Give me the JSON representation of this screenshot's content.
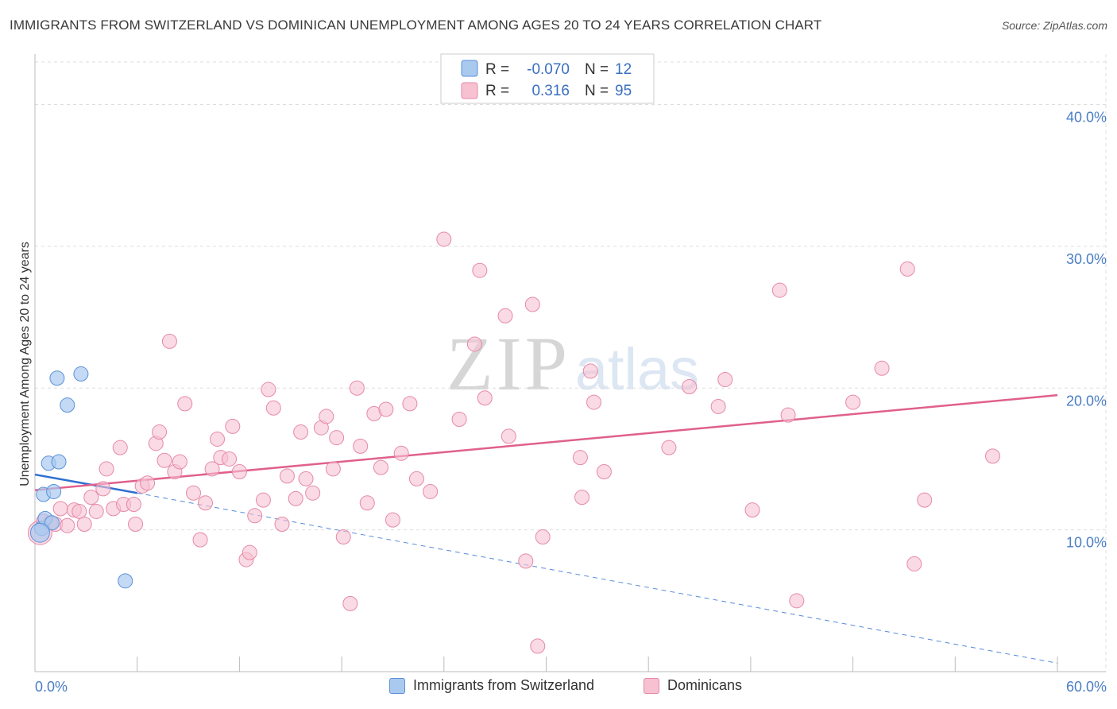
{
  "title": "IMMIGRANTS FROM SWITZERLAND VS DOMINICAN UNEMPLOYMENT AMONG AGES 20 TO 24 YEARS CORRELATION CHART",
  "source": "Source: ZipAtlas.com",
  "watermark": {
    "zip": "ZIP",
    "atlas": "atlas"
  },
  "colors": {
    "blue_fill": "#a9c9ef",
    "blue_stroke": "#5b91d8",
    "blue_line": "#2e6fd0",
    "pink_fill": "#f7c1d2",
    "pink_stroke": "#e58aa8",
    "pink_line": "#e0608c",
    "axis_text": "#4a7ec4",
    "grid": "#dddddd"
  },
  "legend": {
    "rows": [
      {
        "r_label": "R =",
        "r_value": "-0.070",
        "n_label": "N =",
        "n_value": "12",
        "series": "blue"
      },
      {
        "r_label": "R =",
        "r_value": "0.316",
        "n_label": "N =",
        "n_value": "95",
        "series": "pink"
      }
    ]
  },
  "bottom_legend": [
    {
      "label": "Immigrants from Switzerland",
      "series": "blue"
    },
    {
      "label": "Dominicans",
      "series": "pink"
    }
  ],
  "chart_data": {
    "type": "scatter",
    "title": "IMMIGRANTS FROM SWITZERLAND VS DOMINICAN UNEMPLOYMENT AMONG AGES 20 TO 24 YEARS CORRELATION CHART",
    "xlabel": "",
    "ylabel": "Unemployment Among Ages 20 to 24 years",
    "xlim": [
      0,
      60
    ],
    "ylim": [
      0,
      43
    ],
    "x_tick_labels": [
      {
        "value": 0,
        "label": "0.0%"
      },
      {
        "value": 60,
        "label": "60.0%"
      }
    ],
    "x_minor_ticks": [
      0,
      6,
      12,
      18,
      24,
      30,
      36,
      42,
      48,
      54,
      60
    ],
    "y_ticks": [
      {
        "value": 10,
        "label": "10.0%"
      },
      {
        "value": 20,
        "label": "20.0%"
      },
      {
        "value": 30,
        "label": "30.0%"
      },
      {
        "value": 40,
        "label": "40.0%"
      }
    ],
    "grid": true,
    "series": [
      {
        "name": "Immigrants from Switzerland",
        "color": "blue",
        "trend": {
          "x0": 0,
          "y0": 13.9,
          "x1": 6.0,
          "y1": 12.6,
          "extend_to_x": 60,
          "extend_to_y": 0.6
        },
        "points": [
          [
            0.4,
            10.1
          ],
          [
            0.5,
            12.5
          ],
          [
            0.6,
            10.8
          ],
          [
            0.8,
            14.7
          ],
          [
            1.0,
            10.5
          ],
          [
            1.1,
            12.7
          ],
          [
            1.3,
            20.7
          ],
          [
            1.4,
            14.8
          ],
          [
            1.9,
            18.8
          ],
          [
            2.7,
            21.0
          ],
          [
            5.3,
            6.4
          ],
          [
            0.3,
            9.8
          ]
        ]
      },
      {
        "name": "Dominicans",
        "color": "pink",
        "trend": {
          "x0": 0,
          "y0": 12.8,
          "x1": 60,
          "y1": 19.5
        },
        "points": [
          [
            0.3,
            9.8
          ],
          [
            0.5,
            10.6
          ],
          [
            0.9,
            10.5
          ],
          [
            1.2,
            10.4
          ],
          [
            1.5,
            11.5
          ],
          [
            1.9,
            10.3
          ],
          [
            2.3,
            11.4
          ],
          [
            2.6,
            11.3
          ],
          [
            2.9,
            10.4
          ],
          [
            3.3,
            12.3
          ],
          [
            3.6,
            11.3
          ],
          [
            4.0,
            12.9
          ],
          [
            4.2,
            14.3
          ],
          [
            4.6,
            11.5
          ],
          [
            5.0,
            15.8
          ],
          [
            5.2,
            11.8
          ],
          [
            5.8,
            11.8
          ],
          [
            5.9,
            10.4
          ],
          [
            6.3,
            13.1
          ],
          [
            6.6,
            13.3
          ],
          [
            7.1,
            16.1
          ],
          [
            7.3,
            16.9
          ],
          [
            7.6,
            14.9
          ],
          [
            7.9,
            23.3
          ],
          [
            8.2,
            14.1
          ],
          [
            8.5,
            14.8
          ],
          [
            8.8,
            18.9
          ],
          [
            9.3,
            12.6
          ],
          [
            9.7,
            9.3
          ],
          [
            10.0,
            11.9
          ],
          [
            10.4,
            14.3
          ],
          [
            10.7,
            16.4
          ],
          [
            10.9,
            15.1
          ],
          [
            11.4,
            15.0
          ],
          [
            11.6,
            17.3
          ],
          [
            12.0,
            14.1
          ],
          [
            12.4,
            7.9
          ],
          [
            12.6,
            8.4
          ],
          [
            12.9,
            11.0
          ],
          [
            13.4,
            12.1
          ],
          [
            13.7,
            19.9
          ],
          [
            14.0,
            18.6
          ],
          [
            14.5,
            10.4
          ],
          [
            14.8,
            13.8
          ],
          [
            15.3,
            12.2
          ],
          [
            15.6,
            16.9
          ],
          [
            15.9,
            13.6
          ],
          [
            16.3,
            12.6
          ],
          [
            16.8,
            17.2
          ],
          [
            17.1,
            18.0
          ],
          [
            17.5,
            14.3
          ],
          [
            17.7,
            16.5
          ],
          [
            18.1,
            9.5
          ],
          [
            18.5,
            4.8
          ],
          [
            18.9,
            20.0
          ],
          [
            19.1,
            15.9
          ],
          [
            19.5,
            11.9
          ],
          [
            19.9,
            18.2
          ],
          [
            20.3,
            14.4
          ],
          [
            20.6,
            18.5
          ],
          [
            21.0,
            10.7
          ],
          [
            21.5,
            15.4
          ],
          [
            22.0,
            18.9
          ],
          [
            22.4,
            13.6
          ],
          [
            23.2,
            12.7
          ],
          [
            24.0,
            30.5
          ],
          [
            24.9,
            17.8
          ],
          [
            25.8,
            23.1
          ],
          [
            26.1,
            28.3
          ],
          [
            26.4,
            19.3
          ],
          [
            27.6,
            25.1
          ],
          [
            27.8,
            16.6
          ],
          [
            28.8,
            7.8
          ],
          [
            29.2,
            25.9
          ],
          [
            29.5,
            1.8
          ],
          [
            29.8,
            9.5
          ],
          [
            32.0,
            15.1
          ],
          [
            32.1,
            12.3
          ],
          [
            32.6,
            21.2
          ],
          [
            32.8,
            19.0
          ],
          [
            33.4,
            14.1
          ],
          [
            37.2,
            15.8
          ],
          [
            38.4,
            20.1
          ],
          [
            40.1,
            18.7
          ],
          [
            40.5,
            20.6
          ],
          [
            42.1,
            11.4
          ],
          [
            43.7,
            26.9
          ],
          [
            44.2,
            18.1
          ],
          [
            44.7,
            5.0
          ],
          [
            48.0,
            19.0
          ],
          [
            49.7,
            21.4
          ],
          [
            51.2,
            28.4
          ],
          [
            51.6,
            7.6
          ],
          [
            52.2,
            12.1
          ],
          [
            56.2,
            15.2
          ]
        ]
      }
    ]
  }
}
